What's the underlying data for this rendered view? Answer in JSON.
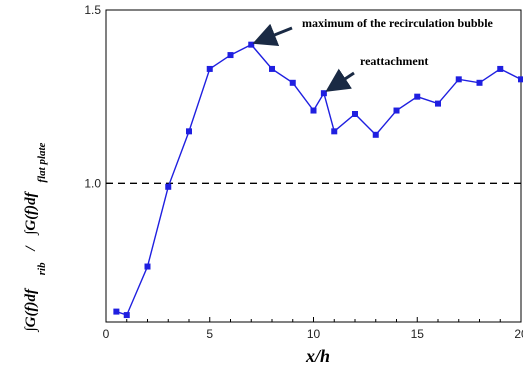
{
  "chart_data": {
    "type": "line",
    "xlabel": "x/h",
    "ylabel": {
      "numerator": "∫G(f)df",
      "numerator_sub": "rib",
      "denominator": "∫G(f)df",
      "denominator_sub": "flat plate"
    },
    "xlim": [
      0,
      20
    ],
    "ylim": [
      0.6,
      1.5
    ],
    "x_ticks": [
      0,
      5,
      10,
      15,
      20
    ],
    "y_ticks": [
      1.0,
      1.5
    ],
    "x_tick_labels": [
      "0",
      "5",
      "10",
      "15",
      "20"
    ],
    "y_tick_labels": [
      "1.0",
      "1.5"
    ],
    "grid": false,
    "reference_line": {
      "y": 1.0,
      "style": "dashed",
      "color": "#000000"
    },
    "series": [
      {
        "color": "#1f1fe0",
        "marker": "square",
        "x": [
          0.5,
          1,
          2,
          3,
          4,
          5,
          6,
          7,
          8,
          9,
          10,
          10.5,
          11,
          12,
          13,
          14,
          15,
          16,
          17,
          18,
          19,
          20
        ],
        "y": [
          0.63,
          0.62,
          0.76,
          0.99,
          1.15,
          1.33,
          1.37,
          1.4,
          1.33,
          1.29,
          1.21,
          1.26,
          1.15,
          1.2,
          1.14,
          1.21,
          1.25,
          1.23,
          1.3,
          1.29,
          1.33,
          1.3
        ]
      }
    ],
    "annotations": [
      {
        "text": "maximum of the recirculation bubble",
        "target": [
          7,
          1.4
        ]
      },
      {
        "text": "reattachment",
        "target": [
          10.5,
          1.26
        ]
      }
    ]
  }
}
